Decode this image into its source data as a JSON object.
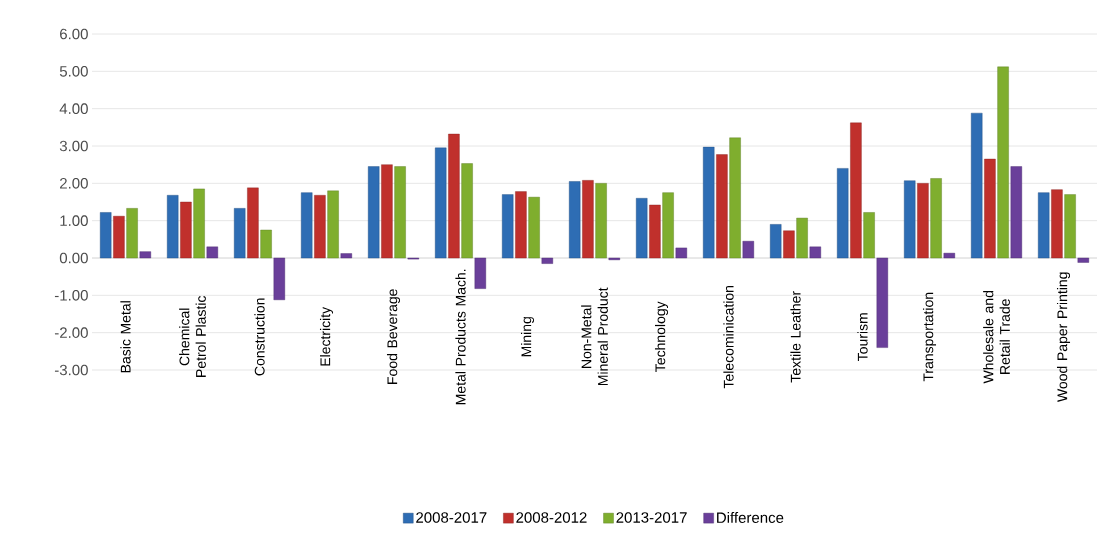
{
  "chart_data": {
    "type": "bar",
    "categories": [
      "Basic Metal",
      "Chemical Petrol Plastic",
      "Construction",
      "Electricity",
      "Food Beverage",
      "Metal Products Mach.",
      "Mining",
      "Non-Metal Mineral Product",
      "Technology",
      "Telecominication",
      "Textile Leather",
      "Tourism",
      "Transportation",
      "Wholesale and Retail Trade",
      "Wood Paper Printing"
    ],
    "series": [
      {
        "name": "2008-2017",
        "color": "#2e6db4",
        "values": [
          1.22,
          1.68,
          1.33,
          1.75,
          2.45,
          2.95,
          1.7,
          2.05,
          1.6,
          2.97,
          0.9,
          2.4,
          2.07,
          3.88,
          1.75
        ]
      },
      {
        "name": "2008-2012",
        "color": "#c0302c",
        "values": [
          1.12,
          1.5,
          1.88,
          1.68,
          2.5,
          3.32,
          1.78,
          2.08,
          1.42,
          2.77,
          0.73,
          3.62,
          2.0,
          2.65,
          1.83
        ]
      },
      {
        "name": "2013-2017",
        "color": "#7fae2e",
        "values": [
          1.33,
          1.85,
          0.75,
          1.8,
          2.45,
          2.53,
          1.63,
          2.0,
          1.75,
          3.22,
          1.07,
          1.22,
          2.13,
          5.12,
          1.7
        ]
      },
      {
        "name": "Difference",
        "color": "#6a3f9a",
        "values": [
          0.17,
          0.3,
          -1.12,
          0.12,
          -0.03,
          -0.82,
          -0.15,
          -0.05,
          0.27,
          0.45,
          0.3,
          -2.4,
          0.13,
          2.45,
          -0.12
        ]
      }
    ],
    "ylim": [
      -3,
      6
    ],
    "yticks": [
      {
        "value": -3,
        "label": "-3.00"
      },
      {
        "value": -2,
        "label": "-2.00"
      },
      {
        "value": -1,
        "label": "-1.00"
      },
      {
        "value": 0,
        "label": "0.00"
      },
      {
        "value": 1,
        "label": "1.00"
      },
      {
        "value": 2,
        "label": "2.00"
      },
      {
        "value": 3,
        "label": "3.00"
      },
      {
        "value": 4,
        "label": "4.00"
      },
      {
        "value": 5,
        "label": "5.00"
      },
      {
        "value": 6,
        "label": "6.00"
      }
    ],
    "grid": "y",
    "legend": "bottom"
  }
}
